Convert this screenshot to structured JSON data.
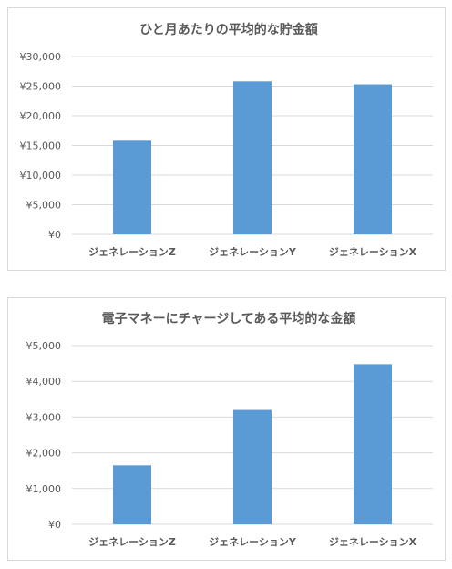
{
  "colors": {
    "bar": "#5b9bd5",
    "grid": "#d9d9d9",
    "text": "#595959",
    "border": "#d9d9d9"
  },
  "chart_data": [
    {
      "type": "bar",
      "title": "ひと月あたりの平均的な貯金額",
      "categories": [
        "ジェネレーションZ",
        "ジェネレーションY",
        "ジェネレーションX"
      ],
      "values": [
        15800,
        25800,
        25300
      ],
      "ylim": [
        0,
        30000
      ],
      "yticks": [
        "¥0",
        "¥5,000",
        "¥10,000",
        "¥15,000",
        "¥20,000",
        "¥25,000",
        "¥30,000"
      ],
      "grid": true,
      "legend": "none"
    },
    {
      "type": "bar",
      "title": "電子マネーにチャージしてある平均的な金額",
      "categories": [
        "ジェネレーションZ",
        "ジェネレーションY",
        "ジェネレーションX"
      ],
      "values": [
        1650,
        3200,
        4480
      ],
      "ylim": [
        0,
        5000
      ],
      "yticks": [
        "¥0",
        "¥1,000",
        "¥2,000",
        "¥3,000",
        "¥4,000",
        "¥5,000"
      ],
      "grid": true,
      "legend": "none"
    }
  ]
}
